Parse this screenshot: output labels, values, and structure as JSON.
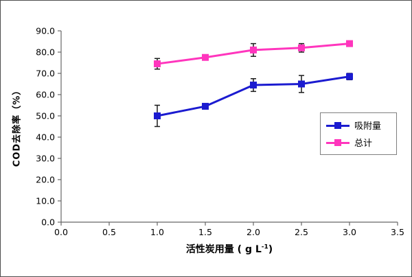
{
  "figure": {
    "background": "#ffffff",
    "border_color": "#4d4d4d"
  },
  "chart_data": {
    "type": "line",
    "x": [
      1.0,
      1.5,
      2.0,
      2.5,
      3.0
    ],
    "series": [
      {
        "name": "吸附量",
        "color": "#1b1bd0",
        "values": [
          50.0,
          54.5,
          64.5,
          65.0,
          68.5
        ],
        "error_bars": [
          5.0,
          0,
          3.0,
          4.0,
          1.5
        ]
      },
      {
        "name": "总计",
        "color": "#ff35bd",
        "values": [
          74.5,
          77.5,
          81.0,
          82.0,
          84.0
        ],
        "error_bars": [
          2.5,
          0,
          3.0,
          2.0,
          0
        ]
      }
    ],
    "title": "",
    "ylabel": "COD去除率（%）",
    "xlabel": {
      "pre": "活性炭用量 ( g L",
      "sup": "-1",
      "post": ")"
    },
    "xlim": [
      0.0,
      3.5
    ],
    "ylim": [
      0.0,
      90.0
    ],
    "x_ticks": [
      "0.0",
      "0.5",
      "1.0",
      "1.5",
      "2.0",
      "2.5",
      "3.0",
      "3.5"
    ],
    "y_ticks": [
      "0.0",
      "10.0",
      "20.0",
      "30.0",
      "40.0",
      "50.0",
      "60.0",
      "70.0",
      "80.0",
      "90.0"
    ],
    "grid": false,
    "legend_position": "inside-right",
    "marker": "square",
    "axis_color": "#666666",
    "tick_label_color": "#000000",
    "error_bar_color": "#1a1a1a"
  }
}
